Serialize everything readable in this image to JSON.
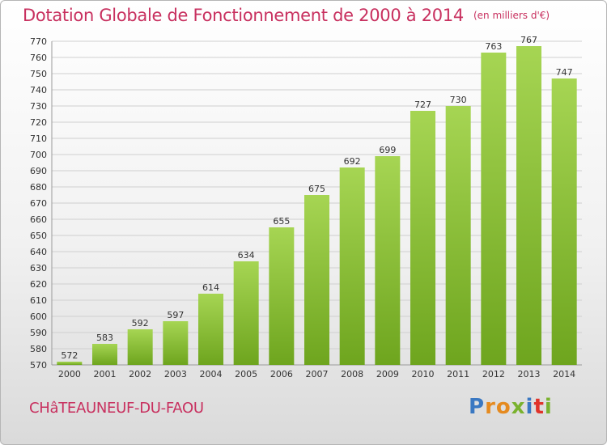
{
  "title": "Dotation Globale de Fonctionnement de 2000 à 2014",
  "unit": "(en milliers d'€)",
  "commune": "CHâTEAUNEUF-DU-FAOU",
  "logo": {
    "text": "Proxiti",
    "letter_colors": [
      "#3a78c2",
      "#e58a1f",
      "#e58a1f",
      "#7ab22e",
      "#3a78c2",
      "#e0332a",
      "#7ab22e"
    ]
  },
  "colors": {
    "title": "#c8305f",
    "bar_light": "#a6d553",
    "bar_dark": "#6ea51e",
    "grid": "#cfcfcf",
    "axis_text": "#333333"
  },
  "chart_data": {
    "type": "bar",
    "categories": [
      "2000",
      "2001",
      "2002",
      "2003",
      "2004",
      "2005",
      "2006",
      "2007",
      "2008",
      "2009",
      "2010",
      "2011",
      "2012",
      "2013",
      "2014"
    ],
    "values": [
      572,
      583,
      592,
      597,
      614,
      634,
      655,
      675,
      692,
      699,
      727,
      730,
      763,
      767,
      747
    ],
    "ylim": [
      570,
      770
    ],
    "ytick_step": 10,
    "grid": true,
    "data_labels": true,
    "xlabel": "",
    "ylabel": ""
  }
}
